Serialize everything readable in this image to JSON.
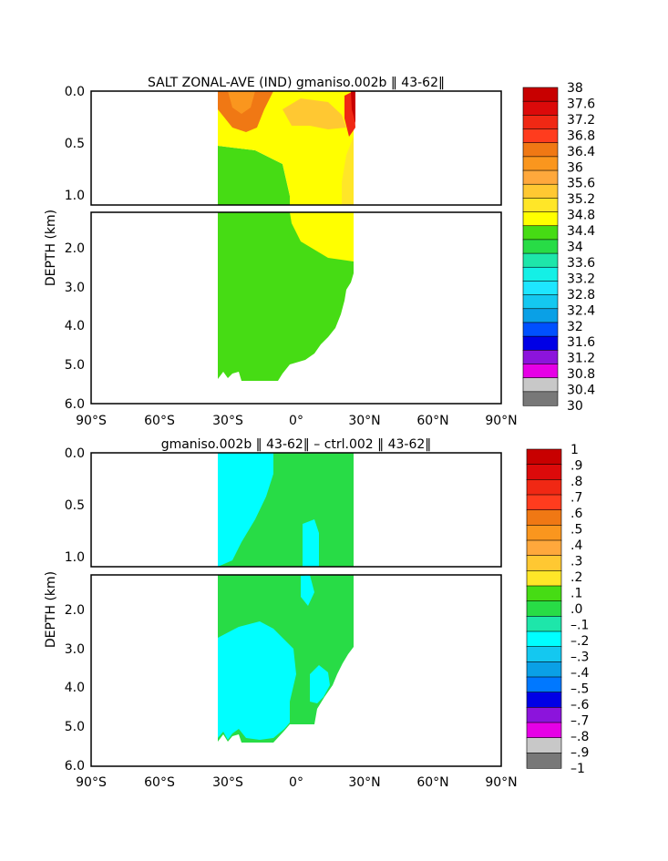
{
  "chart_data": [
    {
      "type": "contour",
      "title": "SALT ZONAL-AVE (IND) gmaniso.002b ‖ 43-62‖",
      "xlabel": "",
      "ylabel": "DEPTH (km)",
      "xlim": [
        -90,
        90
      ],
      "ylim": [
        0,
        6
      ],
      "x_ticks": [
        "90°S",
        "60°S",
        "30°S",
        "0°",
        "30°N",
        "60°N",
        "90°N"
      ],
      "y_ticks_upper": [
        "0.0",
        "0.5",
        "1.0"
      ],
      "y_ticks_lower": [
        "2.0",
        "3.0",
        "4.0",
        "5.0",
        "6.0"
      ],
      "y_break_km": 1.1,
      "legend_levels": [
        "38",
        "37.6",
        "37.2",
        "36.8",
        "36.4",
        "36",
        "35.6",
        "35.2",
        "34.8",
        "34.4",
        "34",
        "33.6",
        "33.2",
        "32.8",
        "32.4",
        "32",
        "31.6",
        "31.2",
        "30.8",
        "30.4",
        "30"
      ],
      "legend_colors": [
        "#c80000",
        "#dc0a0a",
        "#f02814",
        "#ff3c1e",
        "#f07814",
        "#fa961e",
        "#ffa83c",
        "#ffc832",
        "#ffe628",
        "#ffff00",
        "#46dc14",
        "#28dc46",
        "#1ee6aa",
        "#14f0e6",
        "#1ee6ff",
        "#14c8f0",
        "#0aa0e6",
        "#0050ff",
        "#0000e6",
        "#8c14dc",
        "#e600e6",
        "#c8c8c8",
        "#787878"
      ],
      "series": [
        {
          "name": "34.4-34.8",
          "color": "#46dc14",
          "lat_extent": [
            -35,
            25
          ],
          "depth_extent": [
            0.5,
            5.4
          ]
        },
        {
          "name": "34.8-35.2",
          "color": "#ffff00",
          "lat_extent": [
            -35,
            25
          ],
          "depth_extent": [
            0,
            2.3
          ]
        },
        {
          "name": "35.2-35.6",
          "color": "#ffe628",
          "lat_extent": [
            -2,
            25
          ],
          "depth_extent": [
            0,
            2.0
          ]
        },
        {
          "name": "35.6-36.4",
          "color": "#ffc832",
          "lat_extent": [
            -10,
            25
          ],
          "depth_extent": [
            0,
            0.4
          ]
        },
        {
          "name": "36.4-38",
          "color": "#f07814",
          "lat_extent": [
            -35,
            -22
          ],
          "depth_extent": [
            0,
            0.3
          ]
        }
      ]
    },
    {
      "type": "contour",
      "title": "gmaniso.002b ‖ 43-62‖ – ctrl.002 ‖ 43-62‖",
      "xlabel": "",
      "ylabel": "DEPTH (km)",
      "xlim": [
        -90,
        90
      ],
      "ylim": [
        0,
        6
      ],
      "x_ticks": [
        "90°S",
        "60°S",
        "30°S",
        "0°",
        "30°N",
        "60°N",
        "90°N"
      ],
      "y_ticks_upper": [
        "0.0",
        "0.5",
        "1.0"
      ],
      "y_ticks_lower": [
        "2.0",
        "3.0",
        "4.0",
        "5.0",
        "6.0"
      ],
      "y_break_km": 1.1,
      "legend_levels": [
        "1",
        ".9",
        ".8",
        ".7",
        ".6",
        ".5",
        ".4",
        ".3",
        ".2",
        ".1",
        ".0",
        "–.1",
        "–.2",
        "–.3",
        "–.4",
        "–.5",
        "–.6",
        "–.7",
        "–.8",
        "–.9",
        "–1"
      ],
      "legend_colors": [
        "#c80000",
        "#dc0a0a",
        "#f02814",
        "#ff3c1e",
        "#f07814",
        "#fa961e",
        "#ffa83c",
        "#ffc832",
        "#ffe628",
        "#46dc14",
        "#28dc46",
        "#1ee6aa",
        "#00ffff",
        "#14c8f0",
        "#0aa0e6",
        "#0078ff",
        "#0000e6",
        "#8c14dc",
        "#e600e6",
        "#c8c8c8",
        "#787878"
      ],
      "series": [
        {
          "name": "0.0-0.1",
          "color": "#28dc46",
          "lat_extent": [
            -35,
            25
          ],
          "depth_extent": [
            0,
            5.4
          ]
        },
        {
          "name": "-0.1-0.0",
          "color": "#00ffff",
          "lat_extent": [
            -35,
            20
          ],
          "depth_extent": [
            0,
            5.3
          ]
        }
      ]
    }
  ]
}
